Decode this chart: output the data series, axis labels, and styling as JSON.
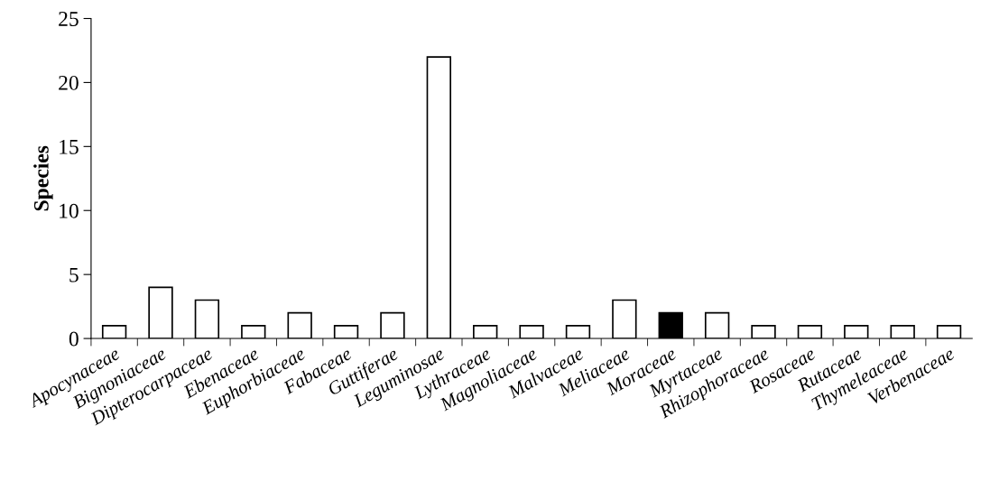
{
  "chart_data": {
    "type": "bar",
    "ylabel": "Species",
    "categories": [
      "Apocynaceae",
      "Bignoniaceae",
      "Dipterocarpaceae",
      "Ebenaceae",
      "Euphorbiaceae",
      "Fabaceae",
      "Guttiferae",
      "Leguminosae",
      "Lythraceae",
      "Magnoliaceae",
      "Malvaceae",
      "Meliaceae",
      "Moraceae",
      "Myrtaceae",
      "Rhizophoraceae",
      "Rosaceae",
      "Rutaceae",
      "Thymeleaceae",
      "Verbenaceae"
    ],
    "values": [
      1,
      4,
      3,
      1,
      2,
      1,
      2,
      22,
      1,
      1,
      1,
      3,
      2,
      2,
      1,
      1,
      1,
      1,
      1
    ],
    "colors": [
      "#ffffff",
      "#ffffff",
      "#ffffff",
      "#ffffff",
      "#ffffff",
      "#ffffff",
      "#ffffff",
      "#ffffff",
      "#ffffff",
      "#ffffff",
      "#ffffff",
      "#ffffff",
      "#000000",
      "#ffffff",
      "#ffffff",
      "#ffffff",
      "#ffffff",
      "#ffffff",
      "#ffffff"
    ],
    "ylim": [
      0,
      25
    ],
    "yticks": [
      0,
      5,
      10,
      15,
      20,
      25
    ],
    "grid": false,
    "legend": false
  }
}
